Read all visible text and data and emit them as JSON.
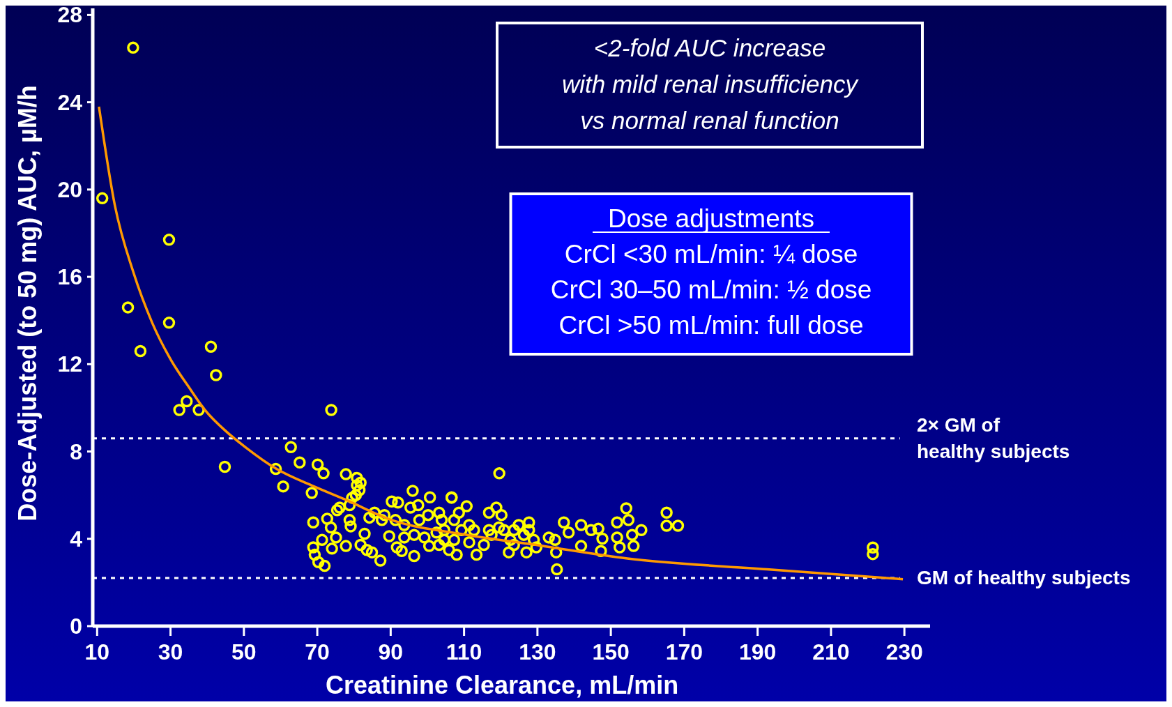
{
  "chart_data": {
    "type": "scatter",
    "xlabel": "Creatinine Clearance, mL/min",
    "ylabel": "Dose-Adjusted (to 50 mg) AUC, µM/h",
    "xlim": [
      8.8,
      237
    ],
    "ylim": [
      0,
      28.3
    ],
    "xticks": [
      10,
      30,
      50,
      70,
      90,
      110,
      130,
      150,
      170,
      190,
      210,
      230
    ],
    "yticks": [
      0,
      4,
      8,
      12,
      16,
      20,
      24,
      28
    ],
    "grid": false,
    "marker": "circle",
    "series": [
      {
        "type": "scatter",
        "color": "#ffff00",
        "x": [
          19.8,
          11.4,
          29.6,
          18.4,
          29.6,
          21.8,
          41.0,
          42.4,
          34.4,
          32.4,
          37.7,
          73.8,
          44.8,
          62.8,
          58.7,
          65.2,
          70.1,
          71.7,
          60.7,
          68.5,
          119.6,
          96.0,
          100.7,
          106.6,
          221.4,
          221.4,
          135.3,
          87.2,
          154.2,
          165.2,
          165.2,
          168.3,
          158.3,
          68.9,
          72.7,
          75.4,
          76.1,
          78.8,
          78.8,
          79.5,
          80.5,
          81.5,
          80.8,
          81.8,
          80.8,
          77.8,
          68.9,
          69.3,
          70.3,
          72.0,
          71.3,
          74.0,
          75.1,
          73.7,
          77.8,
          79.1,
          81.8,
          82.9,
          83.5,
          84.9,
          84.2,
          85.6,
          88.3,
          87.6,
          89.6,
          90.3,
          92.0,
          91.3,
          91.7,
          93.0,
          93.7,
          95.4,
          96.4,
          96.4,
          97.5,
          97.8,
          100.2,
          100.5,
          102.5,
          103.2,
          103.9,
          104.6,
          105.9,
          106.6,
          107.3,
          108.0,
          108.6,
          109.3,
          110.7,
          111.4,
          112.7,
          113.4,
          115.4,
          116.8,
          117.5,
          118.8,
          120.2,
          119.5,
          122.2,
          122.6,
          123.6,
          124.9,
          127.0,
          127.7,
          129.0,
          129.7,
          133.1,
          134.8,
          135.1,
          137.2,
          138.5,
          141.9,
          141.9,
          144.6,
          146.6,
          147.7,
          147.3,
          151.7,
          151.7,
          152.4,
          154.8,
          155.8,
          156.2,
          93.7,
          99.2,
          103.2,
          104.6,
          107.3,
          111.4,
          116.8,
          120.9,
          123.6,
          126.3,
          127.7
        ],
        "values": [
          26.5,
          19.6,
          17.7,
          14.6,
          13.9,
          12.6,
          12.8,
          11.5,
          10.3,
          9.9,
          9.9,
          9.9,
          7.3,
          8.2,
          7.2,
          7.5,
          7.4,
          7.0,
          6.4,
          6.1,
          7.0,
          6.2,
          5.9,
          5.9,
          3.6,
          3.3,
          2.6,
          3.0,
          5.4,
          5.2,
          4.6,
          4.6,
          4.4,
          4.75,
          4.92,
          5.31,
          5.43,
          5.54,
          4.86,
          5.88,
          6.0,
          6.23,
          6.45,
          6.57,
          6.79,
          6.96,
          3.61,
          3.27,
          2.93,
          2.76,
          3.95,
          3.55,
          4.06,
          4.52,
          3.67,
          4.57,
          3.72,
          4.23,
          3.49,
          3.38,
          4.97,
          5.2,
          5.09,
          4.86,
          4.12,
          5.71,
          5.66,
          4.86,
          3.61,
          3.44,
          4.63,
          5.43,
          4.18,
          3.21,
          5.54,
          4.86,
          5.09,
          3.67,
          4.29,
          5.2,
          4.86,
          3.95,
          3.49,
          5.88,
          4.86,
          3.27,
          5.2,
          4.4,
          5.49,
          3.84,
          4.4,
          3.27,
          3.72,
          5.2,
          4.18,
          5.43,
          5.09,
          4.52,
          3.38,
          3.95,
          4.4,
          4.63,
          3.38,
          4.75,
          3.95,
          3.61,
          4.06,
          3.95,
          3.38,
          4.75,
          4.29,
          4.63,
          3.67,
          4.4,
          4.46,
          4.01,
          3.44,
          4.75,
          4.06,
          3.61,
          4.86,
          4.18,
          3.67,
          4.06,
          4.06,
          3.72,
          4.4,
          3.95,
          4.63,
          4.4,
          4.4,
          3.72,
          4.18,
          4.4
        ]
      },
      {
        "type": "line",
        "color": "#ff9900",
        "marker": "none",
        "x": [
          10.5,
          14.8,
          19.9,
          25,
          30.1,
          35.2,
          39.4,
          45.3,
          50.4,
          58.9,
          69.1,
          77.6,
          89.6,
          110,
          130.4,
          154.5,
          192.5,
          229.6
        ],
        "values": [
          23.8,
          19.3,
          16.2,
          13.9,
          12.2,
          10.9,
          9.9,
          8.9,
          8.2,
          7.2,
          6.4,
          5.8,
          4.9,
          4.2,
          3.7,
          3.1,
          2.6,
          2.15
        ]
      }
    ],
    "ref_lines": [
      {
        "axis": "y",
        "value": 8.6,
        "label": "2× GM of\nhealthy subjects",
        "color": "#ffffff",
        "line_style": "dotted"
      },
      {
        "axis": "y",
        "value": 2.2,
        "label": "GM of healthy subjects",
        "color": "#ffffff",
        "line_style": "dotted"
      }
    ],
    "annotations": [
      "<2-fold AUC increase\nwith mild renal insufficiency\nvs normal renal function",
      "Dose adjustments\nCrCl <30 mL/min: ¼ dose\nCrCl 30–50 mL/min: ½ dose\nCrCl >50 mL/min: full dose"
    ]
  }
}
